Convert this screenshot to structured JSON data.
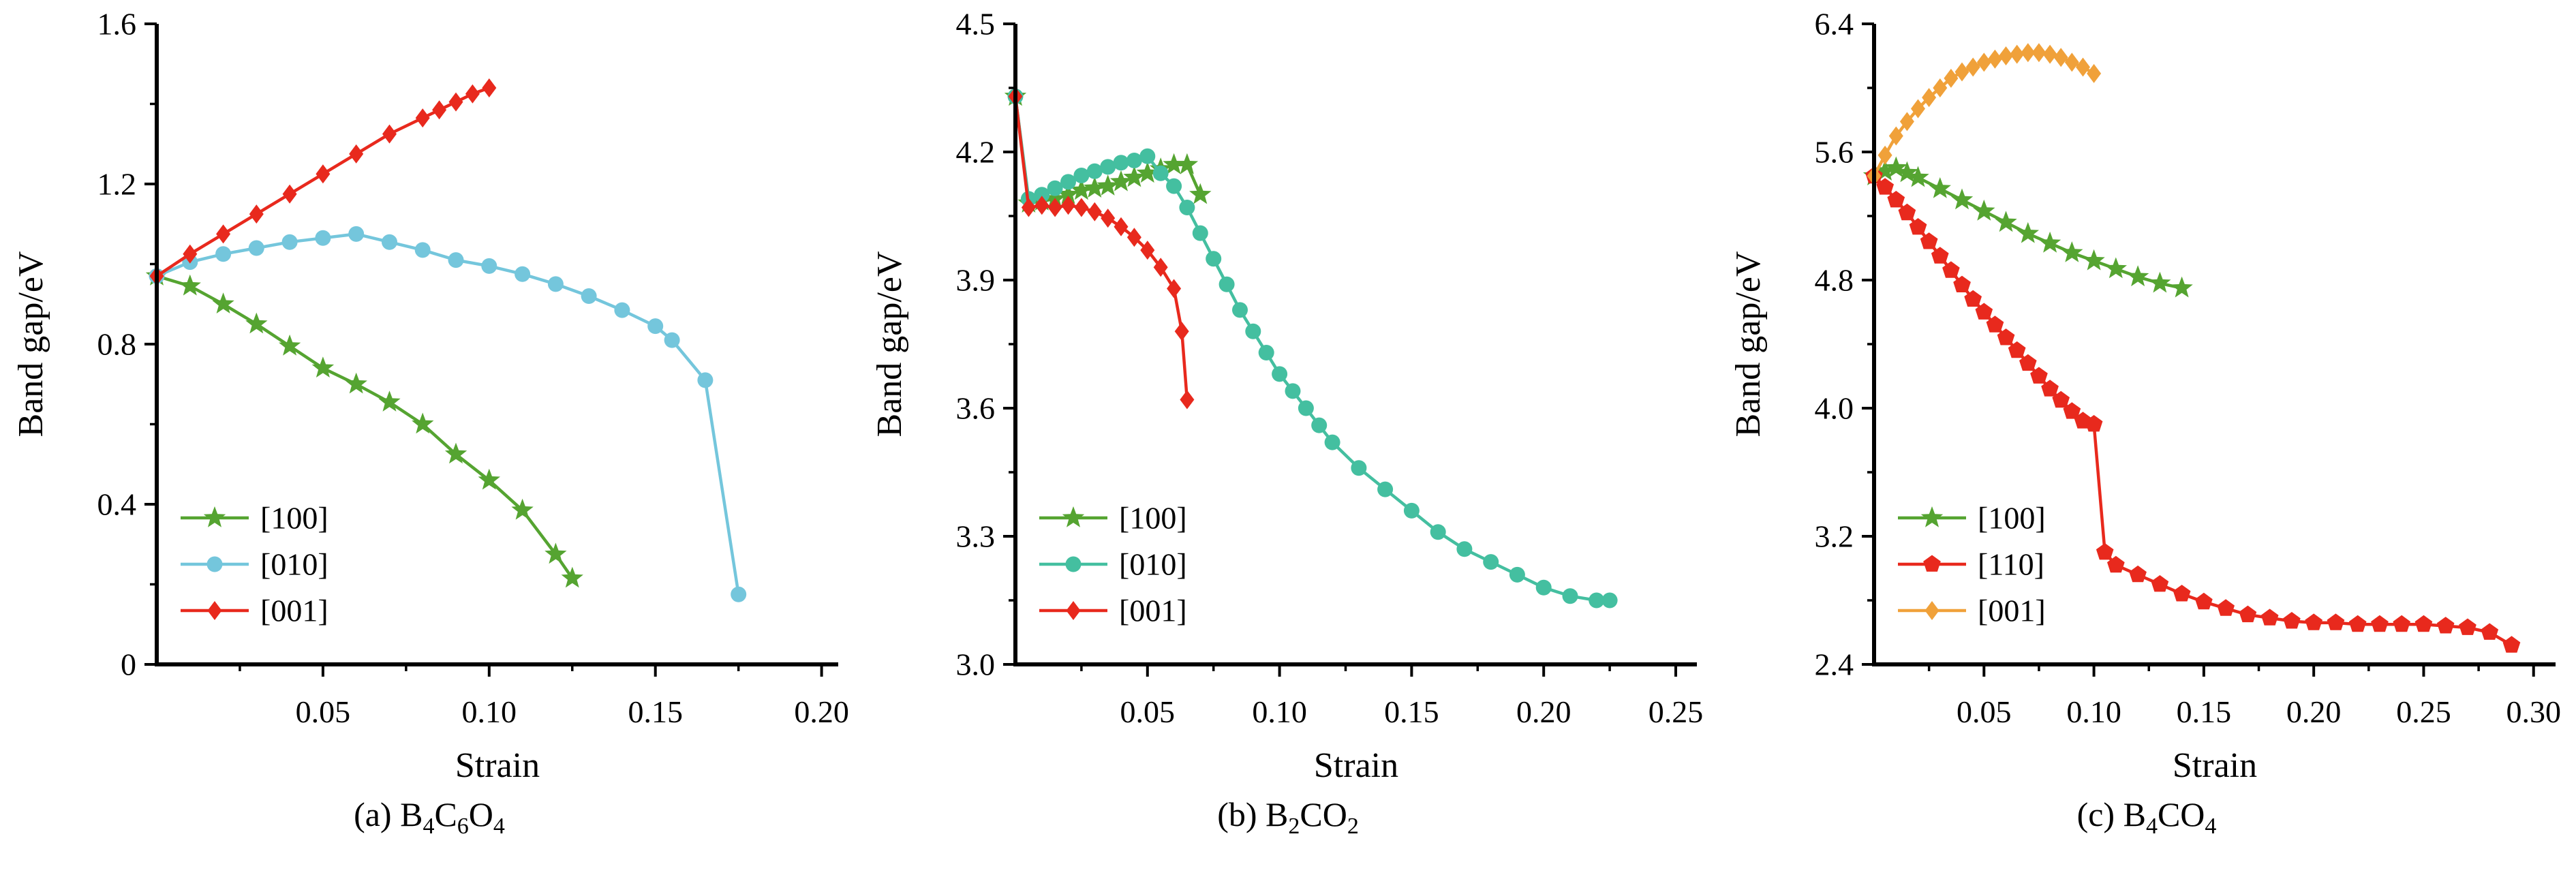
{
  "page": {
    "background": "#ffffff"
  },
  "chart_data": [
    {
      "id": "a",
      "type": "line",
      "caption_text": "(a) B4C6O4",
      "caption_parts": [
        {
          "t": "(a) B",
          "sub": false
        },
        {
          "t": "4",
          "sub": true
        },
        {
          "t": "C",
          "sub": false
        },
        {
          "t": "6",
          "sub": true
        },
        {
          "t": "O",
          "sub": false
        },
        {
          "t": "4",
          "sub": true
        }
      ],
      "xlabel": "Strain",
      "ylabel": "Band gap/eV",
      "xlim": [
        0,
        0.205
      ],
      "ylim": [
        0,
        1.6
      ],
      "xminor_step": 0.025,
      "yminor_step": 0.2,
      "grid": false,
      "legend_position": "bottom-left",
      "xticks": [
        {
          "v": 0.05,
          "label": "0.05"
        },
        {
          "v": 0.1,
          "label": "0.10"
        },
        {
          "v": 0.15,
          "label": "0.15"
        },
        {
          "v": 0.2,
          "label": "0.20"
        }
      ],
      "yticks": [
        {
          "v": 0,
          "label": "0"
        },
        {
          "v": 0.4,
          "label": "0.4"
        },
        {
          "v": 0.8,
          "label": "0.8"
        },
        {
          "v": 1.2,
          "label": "1.2"
        },
        {
          "v": 1.6,
          "label": "1.6"
        }
      ],
      "series": [
        {
          "name": "[100]",
          "color": "#55a431",
          "marker": "star",
          "points": [
            [
              0,
              0.97
            ],
            [
              0.01,
              0.945
            ],
            [
              0.02,
              0.9
            ],
            [
              0.03,
              0.85
            ],
            [
              0.04,
              0.795
            ],
            [
              0.05,
              0.74
            ],
            [
              0.06,
              0.7
            ],
            [
              0.07,
              0.655
            ],
            [
              0.08,
              0.6
            ],
            [
              0.09,
              0.525
            ],
            [
              0.1,
              0.46
            ],
            [
              0.11,
              0.385
            ],
            [
              0.12,
              0.275
            ],
            [
              0.125,
              0.215
            ]
          ]
        },
        {
          "name": "[010]",
          "color": "#74c6dc",
          "marker": "circle",
          "points": [
            [
              0,
              0.97
            ],
            [
              0.01,
              1.005
            ],
            [
              0.02,
              1.025
            ],
            [
              0.03,
              1.04
            ],
            [
              0.04,
              1.055
            ],
            [
              0.05,
              1.065
            ],
            [
              0.06,
              1.075
            ],
            [
              0.07,
              1.055
            ],
            [
              0.08,
              1.035
            ],
            [
              0.09,
              1.01
            ],
            [
              0.1,
              0.995
            ],
            [
              0.11,
              0.975
            ],
            [
              0.12,
              0.95
            ],
            [
              0.13,
              0.92
            ],
            [
              0.14,
              0.885
            ],
            [
              0.15,
              0.845
            ],
            [
              0.155,
              0.81
            ],
            [
              0.165,
              0.71
            ],
            [
              0.175,
              0.175
            ]
          ]
        },
        {
          "name": "[001]",
          "color": "#e8291d",
          "marker": "diamond",
          "points": [
            [
              0,
              0.97
            ],
            [
              0.01,
              1.025
            ],
            [
              0.02,
              1.075
            ],
            [
              0.03,
              1.125
            ],
            [
              0.04,
              1.175
            ],
            [
              0.05,
              1.225
            ],
            [
              0.06,
              1.275
            ],
            [
              0.07,
              1.325
            ],
            [
              0.08,
              1.365
            ],
            [
              0.085,
              1.385
            ],
            [
              0.09,
              1.405
            ],
            [
              0.095,
              1.425
            ],
            [
              0.1,
              1.44
            ]
          ]
        }
      ]
    },
    {
      "id": "b",
      "type": "line",
      "caption_text": "(b) B2CO2",
      "caption_parts": [
        {
          "t": "(b) B",
          "sub": false
        },
        {
          "t": "2",
          "sub": true
        },
        {
          "t": "CO",
          "sub": false
        },
        {
          "t": "2",
          "sub": true
        }
      ],
      "xlabel": "Strain",
      "ylabel": "Band gap/eV",
      "xlim": [
        0,
        0.258
      ],
      "ylim": [
        3.0,
        4.5
      ],
      "xminor_step": 0.025,
      "yminor_step": 0.15,
      "grid": false,
      "legend_position": "bottom-left",
      "xticks": [
        {
          "v": 0.05,
          "label": "0.05"
        },
        {
          "v": 0.1,
          "label": "0.10"
        },
        {
          "v": 0.15,
          "label": "0.15"
        },
        {
          "v": 0.2,
          "label": "0.20"
        },
        {
          "v": 0.25,
          "label": "0.25"
        }
      ],
      "yticks": [
        {
          "v": 3.0,
          "label": "3.0"
        },
        {
          "v": 3.3,
          "label": "3.3"
        },
        {
          "v": 3.6,
          "label": "3.6"
        },
        {
          "v": 3.9,
          "label": "3.9"
        },
        {
          "v": 4.2,
          "label": "4.2"
        },
        {
          "v": 4.5,
          "label": "4.5"
        }
      ],
      "series": [
        {
          "name": "[100]",
          "color": "#55a431",
          "marker": "star",
          "points": [
            [
              0,
              4.33
            ],
            [
              0.005,
              4.08
            ],
            [
              0.01,
              4.085
            ],
            [
              0.015,
              4.09
            ],
            [
              0.02,
              4.1
            ],
            [
              0.025,
              4.11
            ],
            [
              0.03,
              4.115
            ],
            [
              0.035,
              4.12
            ],
            [
              0.04,
              4.13
            ],
            [
              0.045,
              4.14
            ],
            [
              0.05,
              4.15
            ],
            [
              0.055,
              4.16
            ],
            [
              0.06,
              4.17
            ],
            [
              0.065,
              4.17
            ],
            [
              0.07,
              4.1
            ]
          ]
        },
        {
          "name": "[010]",
          "color": "#44bfa0",
          "marker": "circle",
          "points": [
            [
              0,
              4.33
            ],
            [
              0.005,
              4.09
            ],
            [
              0.01,
              4.1
            ],
            [
              0.015,
              4.115
            ],
            [
              0.02,
              4.13
            ],
            [
              0.025,
              4.145
            ],
            [
              0.03,
              4.155
            ],
            [
              0.035,
              4.165
            ],
            [
              0.04,
              4.175
            ],
            [
              0.045,
              4.18
            ],
            [
              0.05,
              4.19
            ],
            [
              0.055,
              4.15
            ],
            [
              0.06,
              4.12
            ],
            [
              0.065,
              4.07
            ],
            [
              0.07,
              4.01
            ],
            [
              0.075,
              3.95
            ],
            [
              0.08,
              3.89
            ],
            [
              0.085,
              3.83
            ],
            [
              0.09,
              3.78
            ],
            [
              0.095,
              3.73
            ],
            [
              0.1,
              3.68
            ],
            [
              0.105,
              3.64
            ],
            [
              0.11,
              3.6
            ],
            [
              0.115,
              3.56
            ],
            [
              0.12,
              3.52
            ],
            [
              0.13,
              3.46
            ],
            [
              0.14,
              3.41
            ],
            [
              0.15,
              3.36
            ],
            [
              0.16,
              3.31
            ],
            [
              0.17,
              3.27
            ],
            [
              0.18,
              3.24
            ],
            [
              0.19,
              3.21
            ],
            [
              0.2,
              3.18
            ],
            [
              0.21,
              3.16
            ],
            [
              0.22,
              3.15
            ],
            [
              0.225,
              3.15
            ]
          ]
        },
        {
          "name": "[001]",
          "color": "#e8291d",
          "marker": "diamond",
          "points": [
            [
              0,
              4.33
            ],
            [
              0.005,
              4.07
            ],
            [
              0.01,
              4.075
            ],
            [
              0.015,
              4.07
            ],
            [
              0.02,
              4.075
            ],
            [
              0.025,
              4.07
            ],
            [
              0.03,
              4.06
            ],
            [
              0.035,
              4.045
            ],
            [
              0.04,
              4.025
            ],
            [
              0.045,
              4.0
            ],
            [
              0.05,
              3.97
            ],
            [
              0.055,
              3.93
            ],
            [
              0.06,
              3.88
            ],
            [
              0.063,
              3.78
            ],
            [
              0.065,
              3.62
            ]
          ]
        }
      ]
    },
    {
      "id": "c",
      "type": "line",
      "caption_text": "(c) B4CO4",
      "caption_parts": [
        {
          "t": "(c) B",
          "sub": false
        },
        {
          "t": "4",
          "sub": true
        },
        {
          "t": "CO",
          "sub": false
        },
        {
          "t": "4",
          "sub": true
        }
      ],
      "xlabel": "Strain",
      "ylabel": "Band gap/eV",
      "xlim": [
        0,
        0.31
      ],
      "ylim": [
        2.4,
        6.4
      ],
      "xminor_step": 0.025,
      "yminor_step": 0.4,
      "grid": false,
      "legend_position": "bottom-left",
      "xticks": [
        {
          "v": 0.05,
          "label": "0.05"
        },
        {
          "v": 0.1,
          "label": "0.10"
        },
        {
          "v": 0.15,
          "label": "0.15"
        },
        {
          "v": 0.2,
          "label": "0.20"
        },
        {
          "v": 0.25,
          "label": "0.25"
        },
        {
          "v": 0.3,
          "label": "0.30"
        }
      ],
      "yticks": [
        {
          "v": 2.4,
          "label": "2.4"
        },
        {
          "v": 3.2,
          "label": "3.2"
        },
        {
          "v": 4.0,
          "label": "4.0"
        },
        {
          "v": 4.8,
          "label": "4.8"
        },
        {
          "v": 5.6,
          "label": "5.6"
        },
        {
          "v": 6.4,
          "label": "6.4"
        }
      ],
      "series": [
        {
          "name": "[100]",
          "color": "#55a431",
          "marker": "star",
          "points": [
            [
              0,
              5.45
            ],
            [
              0.005,
              5.48
            ],
            [
              0.01,
              5.5
            ],
            [
              0.015,
              5.47
            ],
            [
              0.02,
              5.44
            ],
            [
              0.03,
              5.37
            ],
            [
              0.04,
              5.3
            ],
            [
              0.05,
              5.23
            ],
            [
              0.06,
              5.16
            ],
            [
              0.07,
              5.09
            ],
            [
              0.08,
              5.03
            ],
            [
              0.09,
              4.97
            ],
            [
              0.1,
              4.92
            ],
            [
              0.11,
              4.87
            ],
            [
              0.12,
              4.82
            ],
            [
              0.13,
              4.78
            ],
            [
              0.14,
              4.75
            ]
          ]
        },
        {
          "name": "[110]",
          "color": "#e8291d",
          "marker": "pentagon",
          "points": [
            [
              0,
              5.45
            ],
            [
              0.005,
              5.38
            ],
            [
              0.01,
              5.3
            ],
            [
              0.015,
              5.22
            ],
            [
              0.02,
              5.13
            ],
            [
              0.025,
              5.04
            ],
            [
              0.03,
              4.95
            ],
            [
              0.035,
              4.86
            ],
            [
              0.04,
              4.77
            ],
            [
              0.045,
              4.68
            ],
            [
              0.05,
              4.6
            ],
            [
              0.055,
              4.52
            ],
            [
              0.06,
              4.44
            ],
            [
              0.065,
              4.36
            ],
            [
              0.07,
              4.28
            ],
            [
              0.075,
              4.2
            ],
            [
              0.08,
              4.12
            ],
            [
              0.085,
              4.05
            ],
            [
              0.09,
              3.98
            ],
            [
              0.095,
              3.92
            ],
            [
              0.1,
              3.9
            ],
            [
              0.105,
              3.1
            ],
            [
              0.11,
              3.02
            ],
            [
              0.12,
              2.96
            ],
            [
              0.13,
              2.9
            ],
            [
              0.14,
              2.84
            ],
            [
              0.15,
              2.79
            ],
            [
              0.16,
              2.75
            ],
            [
              0.17,
              2.71
            ],
            [
              0.18,
              2.69
            ],
            [
              0.19,
              2.67
            ],
            [
              0.2,
              2.66
            ],
            [
              0.21,
              2.66
            ],
            [
              0.22,
              2.65
            ],
            [
              0.23,
              2.65
            ],
            [
              0.24,
              2.65
            ],
            [
              0.25,
              2.65
            ],
            [
              0.26,
              2.64
            ],
            [
              0.27,
              2.63
            ],
            [
              0.28,
              2.6
            ],
            [
              0.29,
              2.52
            ]
          ]
        },
        {
          "name": "[001]",
          "color": "#f0a13a",
          "marker": "diamond",
          "points": [
            [
              0,
              5.45
            ],
            [
              0.005,
              5.58
            ],
            [
              0.01,
              5.7
            ],
            [
              0.015,
              5.79
            ],
            [
              0.02,
              5.87
            ],
            [
              0.025,
              5.94
            ],
            [
              0.03,
              6.0
            ],
            [
              0.035,
              6.06
            ],
            [
              0.04,
              6.1
            ],
            [
              0.045,
              6.13
            ],
            [
              0.05,
              6.16
            ],
            [
              0.055,
              6.18
            ],
            [
              0.06,
              6.2
            ],
            [
              0.065,
              6.21
            ],
            [
              0.07,
              6.22
            ],
            [
              0.075,
              6.22
            ],
            [
              0.08,
              6.21
            ],
            [
              0.085,
              6.19
            ],
            [
              0.09,
              6.16
            ],
            [
              0.095,
              6.13
            ],
            [
              0.1,
              6.09
            ]
          ]
        }
      ]
    }
  ]
}
